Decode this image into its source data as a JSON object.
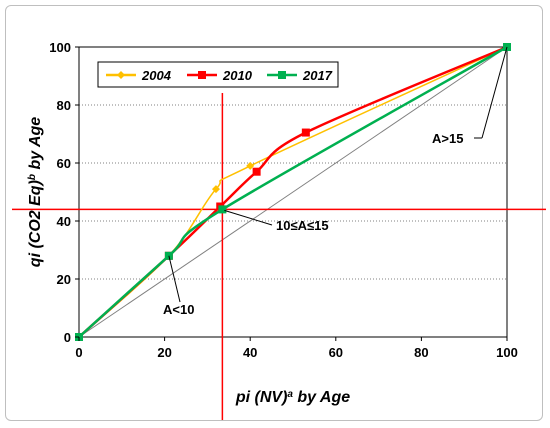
{
  "chart_data": {
    "type": "line",
    "xlabel_main": "pi (NV)",
    "xlabel_sup": "a",
    "xlabel_tail": " by Age",
    "ylabel_main": "qi (CO2 Eq)",
    "ylabel_sup": "b",
    "ylabel_tail": " by Age",
    "xlim": [
      0,
      100
    ],
    "ylim": [
      0,
      100
    ],
    "xticks": [
      "0",
      "20",
      "40",
      "60",
      "80",
      "100"
    ],
    "yticks": [
      "0",
      "20",
      "40",
      "60",
      "80",
      "100"
    ],
    "grid": "horizontal-dotted",
    "legend_position": "top-left",
    "series": [
      {
        "name": "2004",
        "color": "#ffc000",
        "marker": "diamond",
        "x": [
          0,
          21,
          32,
          40,
          100
        ],
        "y": [
          0,
          28,
          51,
          59,
          100
        ]
      },
      {
        "name": "2010",
        "color": "#ff0000",
        "marker": "square",
        "x": [
          0,
          21,
          33,
          41.5,
          53,
          100
        ],
        "y": [
          0,
          28,
          45,
          57,
          70.5,
          100
        ]
      },
      {
        "name": "2017",
        "color": "#00b050",
        "marker": "square",
        "x": [
          0,
          21,
          33.5,
          100
        ],
        "y": [
          0,
          28,
          44,
          100
        ]
      }
    ],
    "reference_lines": {
      "diagonal": {
        "x": [
          0,
          100
        ],
        "y": [
          0,
          100
        ],
        "color": "#808080"
      },
      "vertical": {
        "x": 33.5,
        "color": "#ff0000"
      },
      "horizontal": {
        "y": 44,
        "color": "#ff0000"
      }
    },
    "annotations": [
      {
        "text": "A<10",
        "x": 21,
        "y": 28
      },
      {
        "text": "10≤A≤15",
        "x": 33.5,
        "y": 44
      },
      {
        "text": "A>15",
        "x": 100,
        "y": 100
      }
    ]
  }
}
